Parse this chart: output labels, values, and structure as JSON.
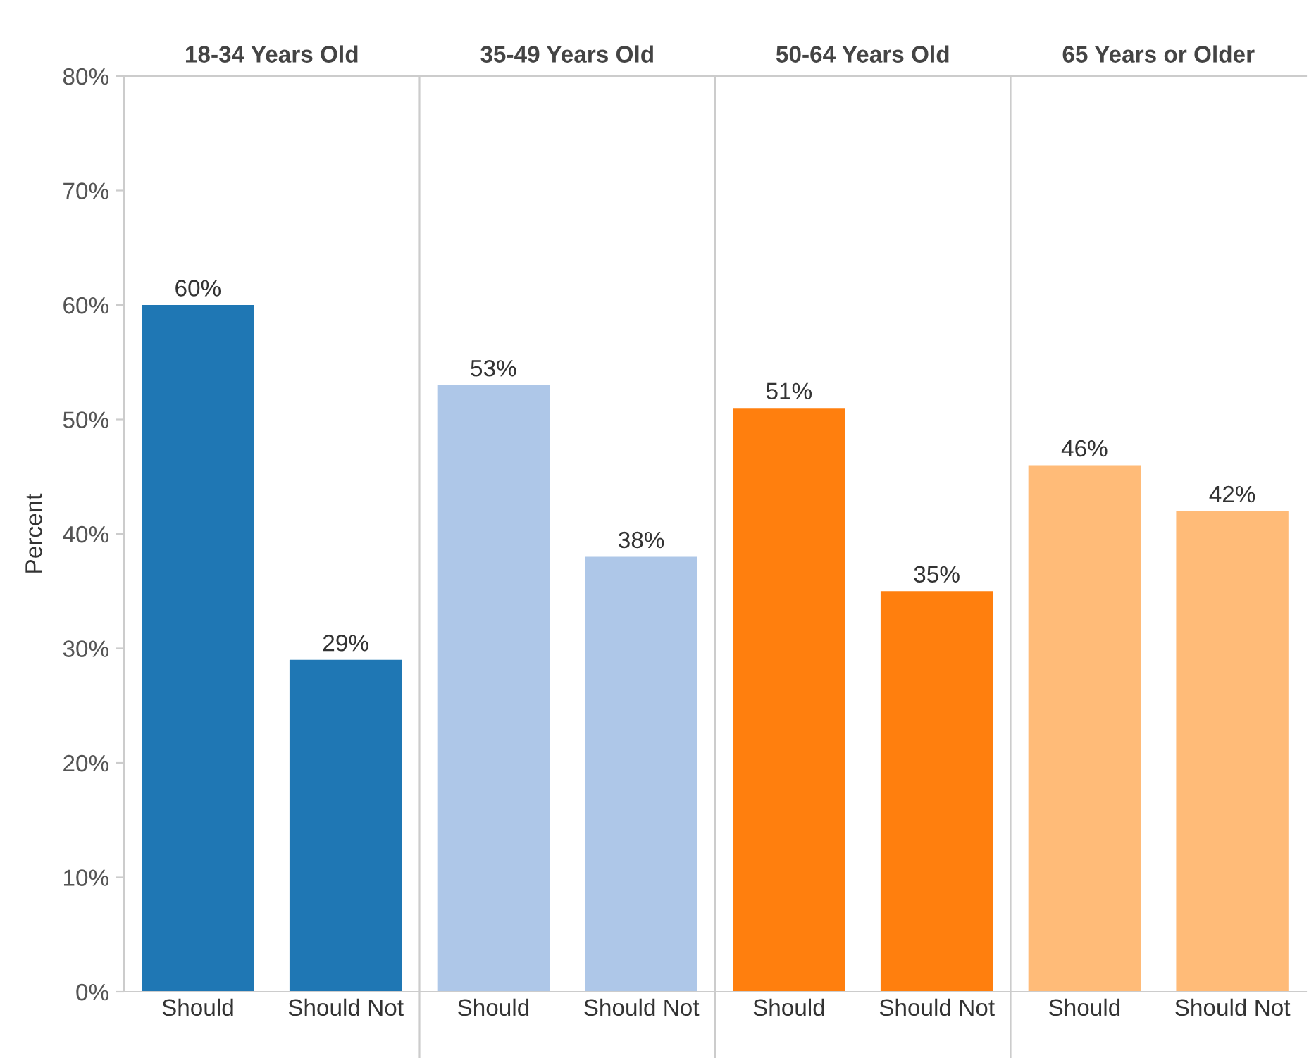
{
  "chart_data": [
    {
      "type": "bar",
      "title": "18-34 Years Old",
      "ylabel": "Percent",
      "categories": [
        "Should",
        "Should Not"
      ],
      "values": [
        60,
        29
      ],
      "value_labels": [
        "60%",
        "29%"
      ],
      "color": "#1f77b4",
      "ylim": [
        0,
        80
      ],
      "yticks": [
        {
          "value": 0,
          "label": "0%"
        },
        {
          "value": 10,
          "label": "10%"
        },
        {
          "value": 20,
          "label": "20%"
        },
        {
          "value": 30,
          "label": "30%"
        },
        {
          "value": 40,
          "label": "40%"
        },
        {
          "value": 50,
          "label": "50%"
        },
        {
          "value": 60,
          "label": "60%"
        },
        {
          "value": 70,
          "label": "70%"
        },
        {
          "value": 80,
          "label": "80%"
        }
      ],
      "grid": false
    },
    {
      "type": "bar",
      "title": "35-49 Years Old",
      "categories": [
        "Should",
        "Should Not"
      ],
      "values": [
        53,
        38
      ],
      "value_labels": [
        "53%",
        "38%"
      ],
      "color": "#aec7e8",
      "ylim": [
        0,
        80
      ],
      "tick_labels": "x",
      "grid": false
    },
    {
      "type": "bar",
      "title": "50-64 Years Old",
      "categories": [
        "Should",
        "Should Not"
      ],
      "values": [
        51,
        35
      ],
      "value_labels": [
        "51%",
        "35%"
      ],
      "color": "#ff7f0e",
      "ylim": [
        0,
        80
      ],
      "tick_labels": "x",
      "grid": false
    },
    {
      "type": "bar",
      "title": "65 Years or Older",
      "categories": [
        "Should",
        "Should Not"
      ],
      "values": [
        46,
        42
      ],
      "value_labels": [
        "46%",
        "42%"
      ],
      "color": "#ffbb78",
      "ylim": [
        0,
        80
      ],
      "tick_labels": "x",
      "grid": false
    }
  ]
}
